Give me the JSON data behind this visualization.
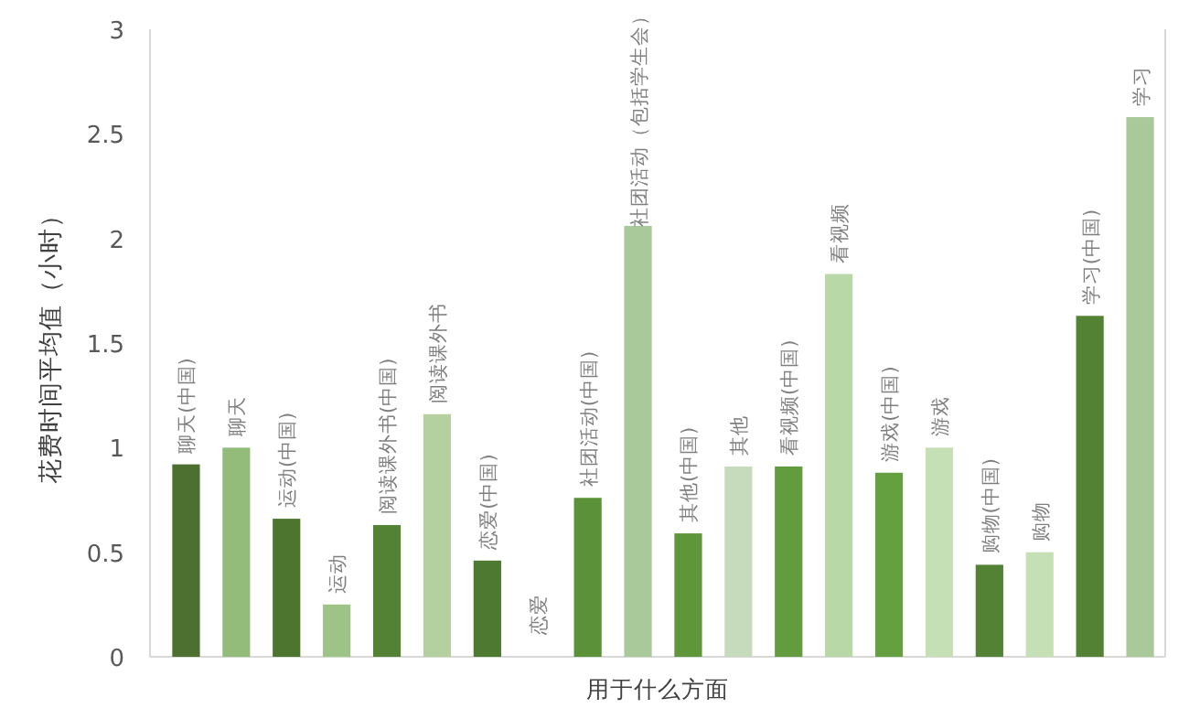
{
  "chart_data": {
    "type": "bar",
    "xlabel": "用于什么方面",
    "ylabel": "花费时间平均值（小时）",
    "categories": [
      "聊天(中国)",
      "聊天",
      "运动(中国)",
      "运动",
      "阅读课外书(中国)",
      "阅读课外书",
      "恋爱(中国)",
      "恋爱",
      "社团活动(中国)",
      "社团活动（包括学生会）",
      "其他(中国)",
      "其他",
      "看视频(中国)",
      "看视频",
      "游戏(中国)",
      "游戏",
      "购物(中国)",
      "购物",
      "学习(中国)",
      "学习"
    ],
    "values": [
      0.92,
      1.0,
      0.66,
      0.25,
      0.63,
      1.16,
      0.46,
      0,
      0.76,
      2.06,
      0.59,
      0.91,
      0.91,
      1.83,
      0.88,
      1.0,
      0.44,
      0.5,
      1.63,
      2.58
    ],
    "colors": [
      "#4d6f2f",
      "#93bc7b",
      "#4d7530",
      "#9dc387",
      "#548235",
      "#b4d09f",
      "#4d7a30",
      "#c5e0b4",
      "#5b9239",
      "#a9c99a",
      "#5e9639",
      "#c5dbbc",
      "#629c3e",
      "#b9d8a7",
      "#64a03f",
      "#c5e0b4",
      "#548235",
      "#c5e0b4",
      "#548235",
      "#a9c99a"
    ],
    "ylim": [
      0,
      3
    ],
    "yticks": [
      0,
      0.5,
      1,
      1.5,
      2,
      2.5,
      3
    ]
  }
}
